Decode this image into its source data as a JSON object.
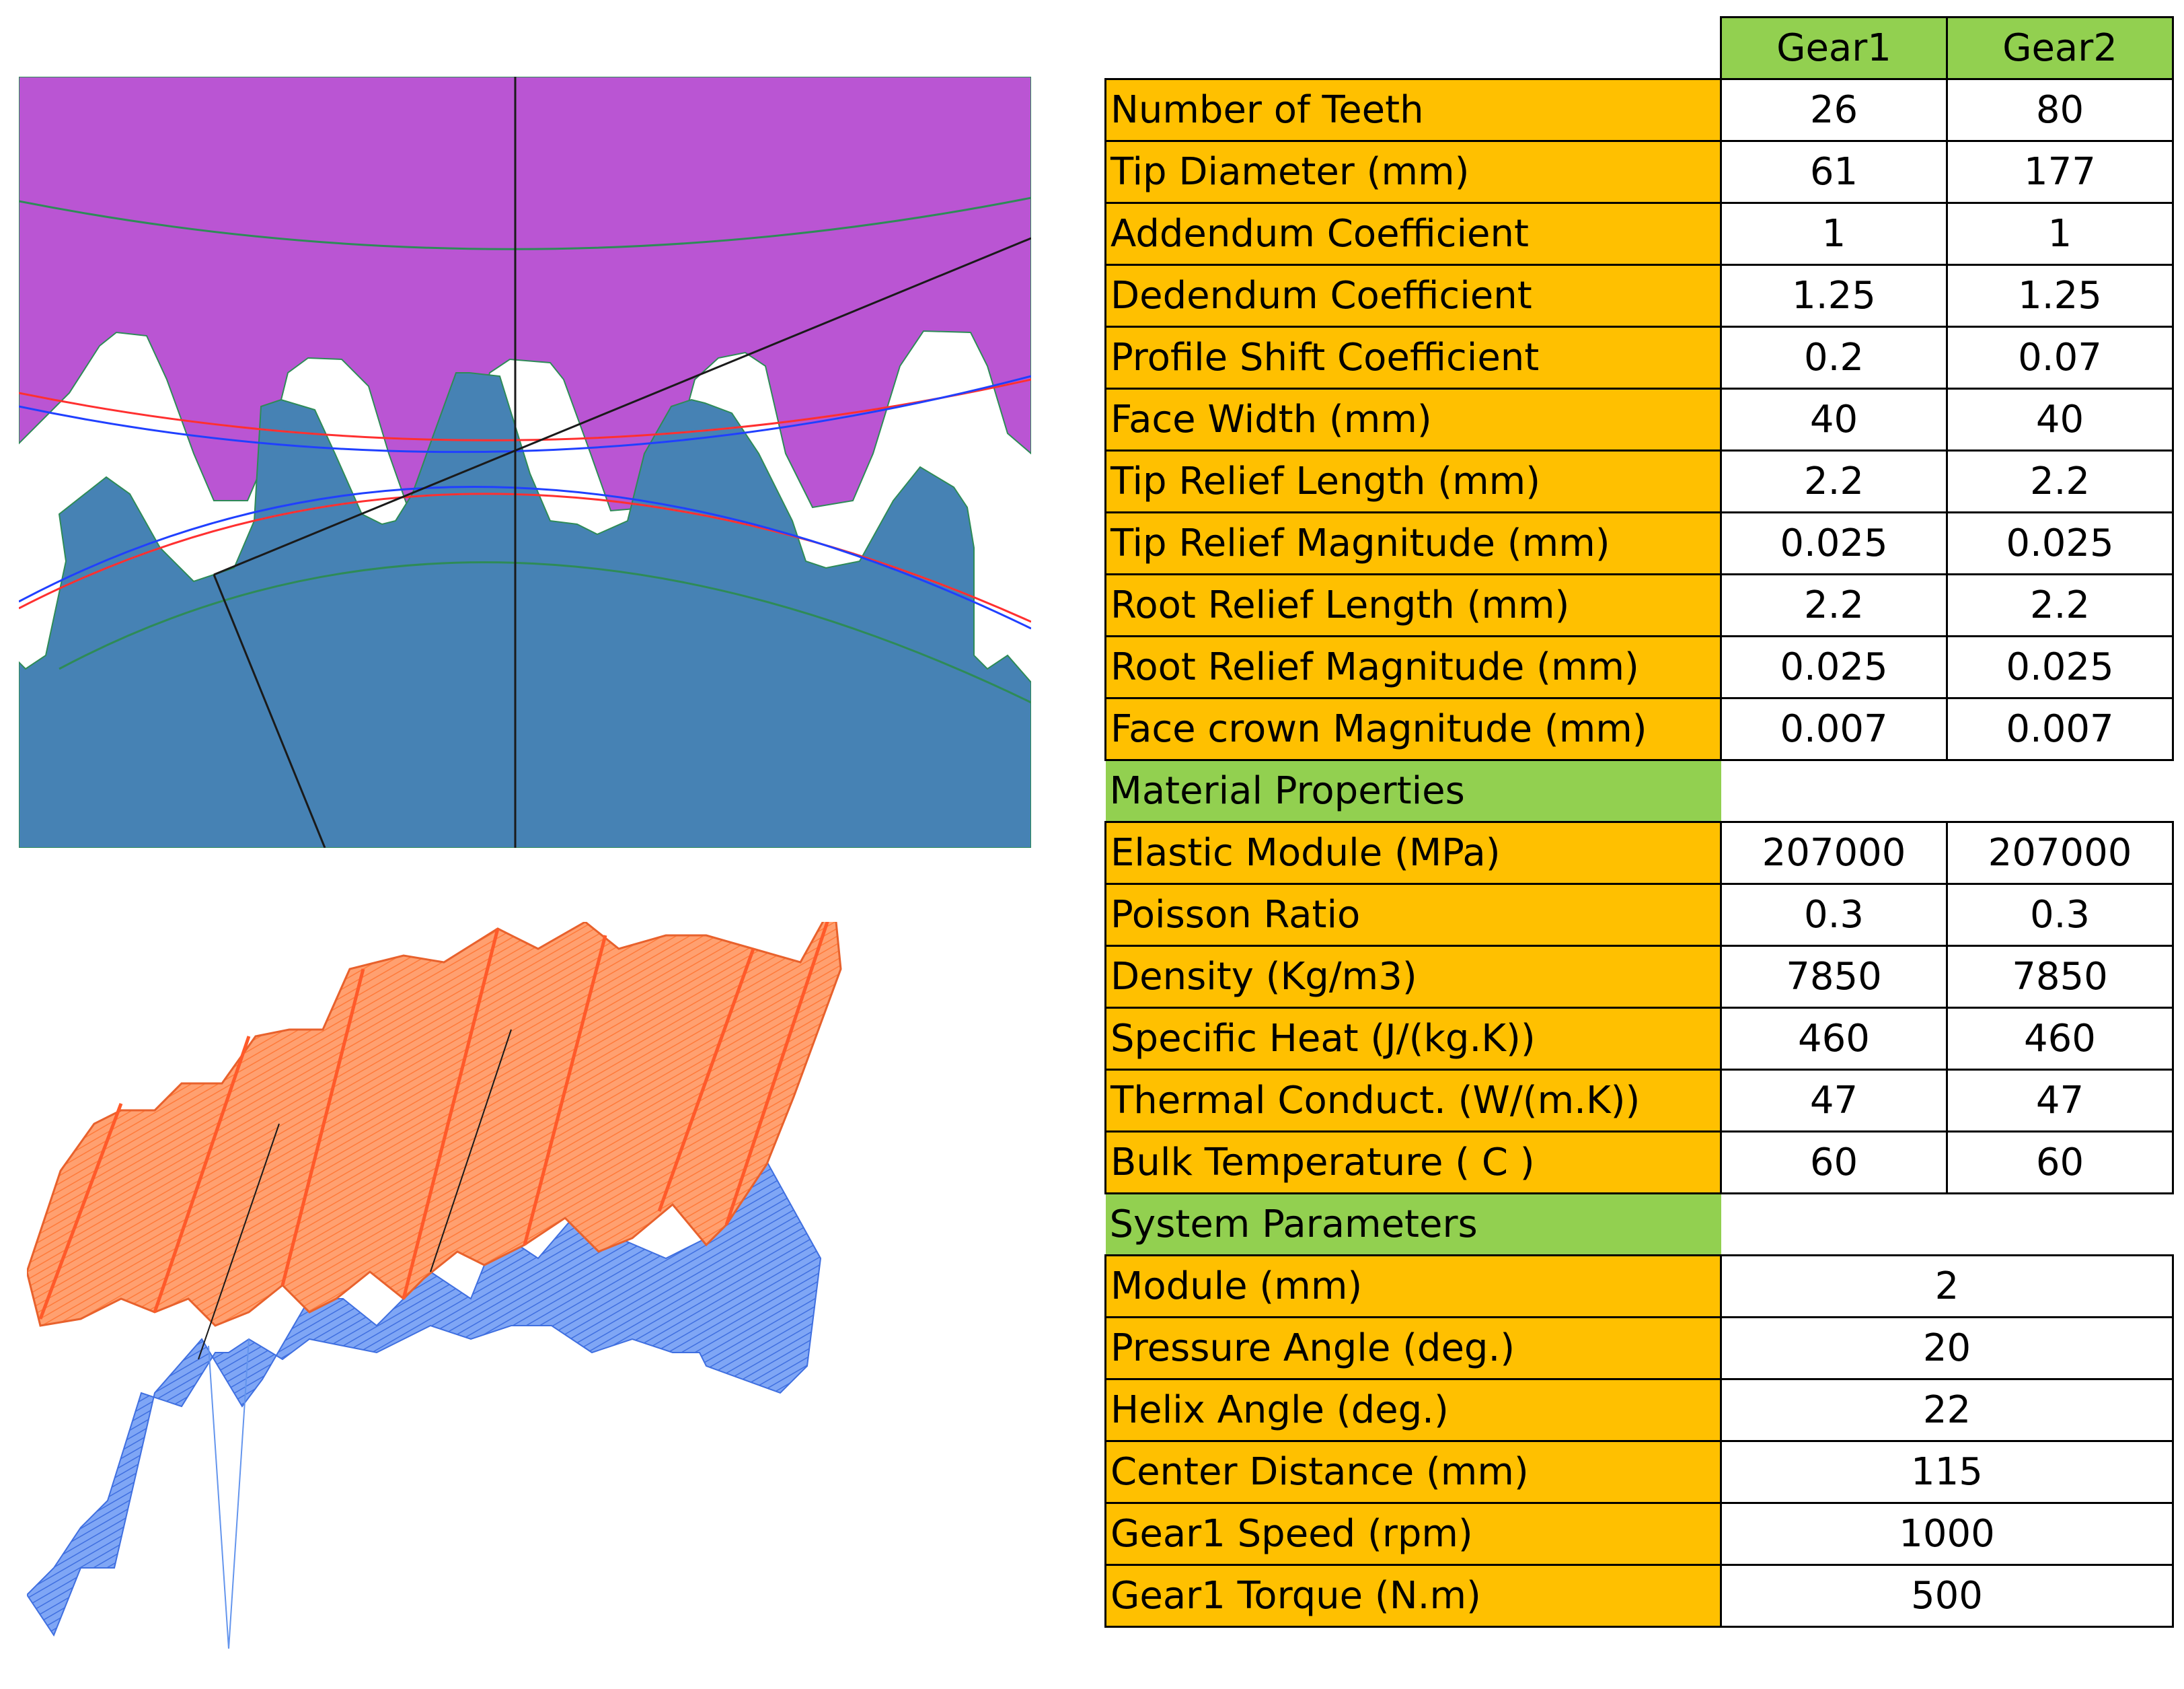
{
  "table": {
    "headers": [
      "Gear1",
      "Gear2"
    ],
    "gear_rows": [
      {
        "label": "Number of Teeth",
        "g1": "26",
        "g2": "80"
      },
      {
        "label": "Tip Diameter (mm)",
        "g1": "61",
        "g2": "177"
      },
      {
        "label": "Addendum Coefficient",
        "g1": "1",
        "g2": "1"
      },
      {
        "label": "Dedendum Coefficient",
        "g1": "1.25",
        "g2": "1.25"
      },
      {
        "label": "Profile Shift Coefficient",
        "g1": "0.2",
        "g2": "0.07"
      },
      {
        "label": "Face Width (mm)",
        "g1": "40",
        "g2": "40"
      },
      {
        "label": "Tip Relief Length (mm)",
        "g1": "2.2",
        "g2": "2.2"
      },
      {
        "label": "Tip Relief Magnitude (mm)",
        "g1": "0.025",
        "g2": "0.025"
      },
      {
        "label": "Root Relief Length (mm)",
        "g1": "2.2",
        "g2": "2.2"
      },
      {
        "label": "Root Relief Magnitude (mm)",
        "g1": "0.025",
        "g2": "0.025"
      },
      {
        "label": "Face crown Magnitude (mm)",
        "g1": "0.007",
        "g2": "0.007"
      }
    ],
    "material_title": "Material Properties",
    "material_rows": [
      {
        "label": "Elastic Module (MPa)",
        "g1": "207000",
        "g2": "207000"
      },
      {
        "label": "Poisson Ratio",
        "g1": "0.3",
        "g2": "0.3"
      },
      {
        "label": "Density (Kg/m3)",
        "g1": "7850",
        "g2": "7850"
      },
      {
        "label": "Specific Heat (J/(kg.K))",
        "g1": "460",
        "g2": "460"
      },
      {
        "label": "Thermal Conduct. (W/(m.K))",
        "g1": "47",
        "g2": "47"
      },
      {
        "label": "Bulk Temperature ( C )",
        "g1": "60",
        "g2": "60"
      }
    ],
    "system_title": "System Parameters",
    "system_rows": [
      {
        "label": "Module (mm)",
        "value": "2"
      },
      {
        "label": "Pressure Angle (deg.)",
        "value": "20"
      },
      {
        "label": "Helix Angle (deg.)",
        "value": "22"
      },
      {
        "label": "Center Distance (mm)",
        "value": "115"
      },
      {
        "label": "Gear1 Speed (rpm)",
        "value": "1000"
      },
      {
        "label": "Gear1 Torque (N.m)",
        "value": "500"
      }
    ]
  },
  "colors": {
    "label_fill": "#FFC000",
    "header_fill": "#92D050",
    "gear1_fill": "#4682B4",
    "gear2_fill": "#BA55D3",
    "surface_top": "#FF8C5A",
    "surface_bottom": "#6495ED"
  }
}
